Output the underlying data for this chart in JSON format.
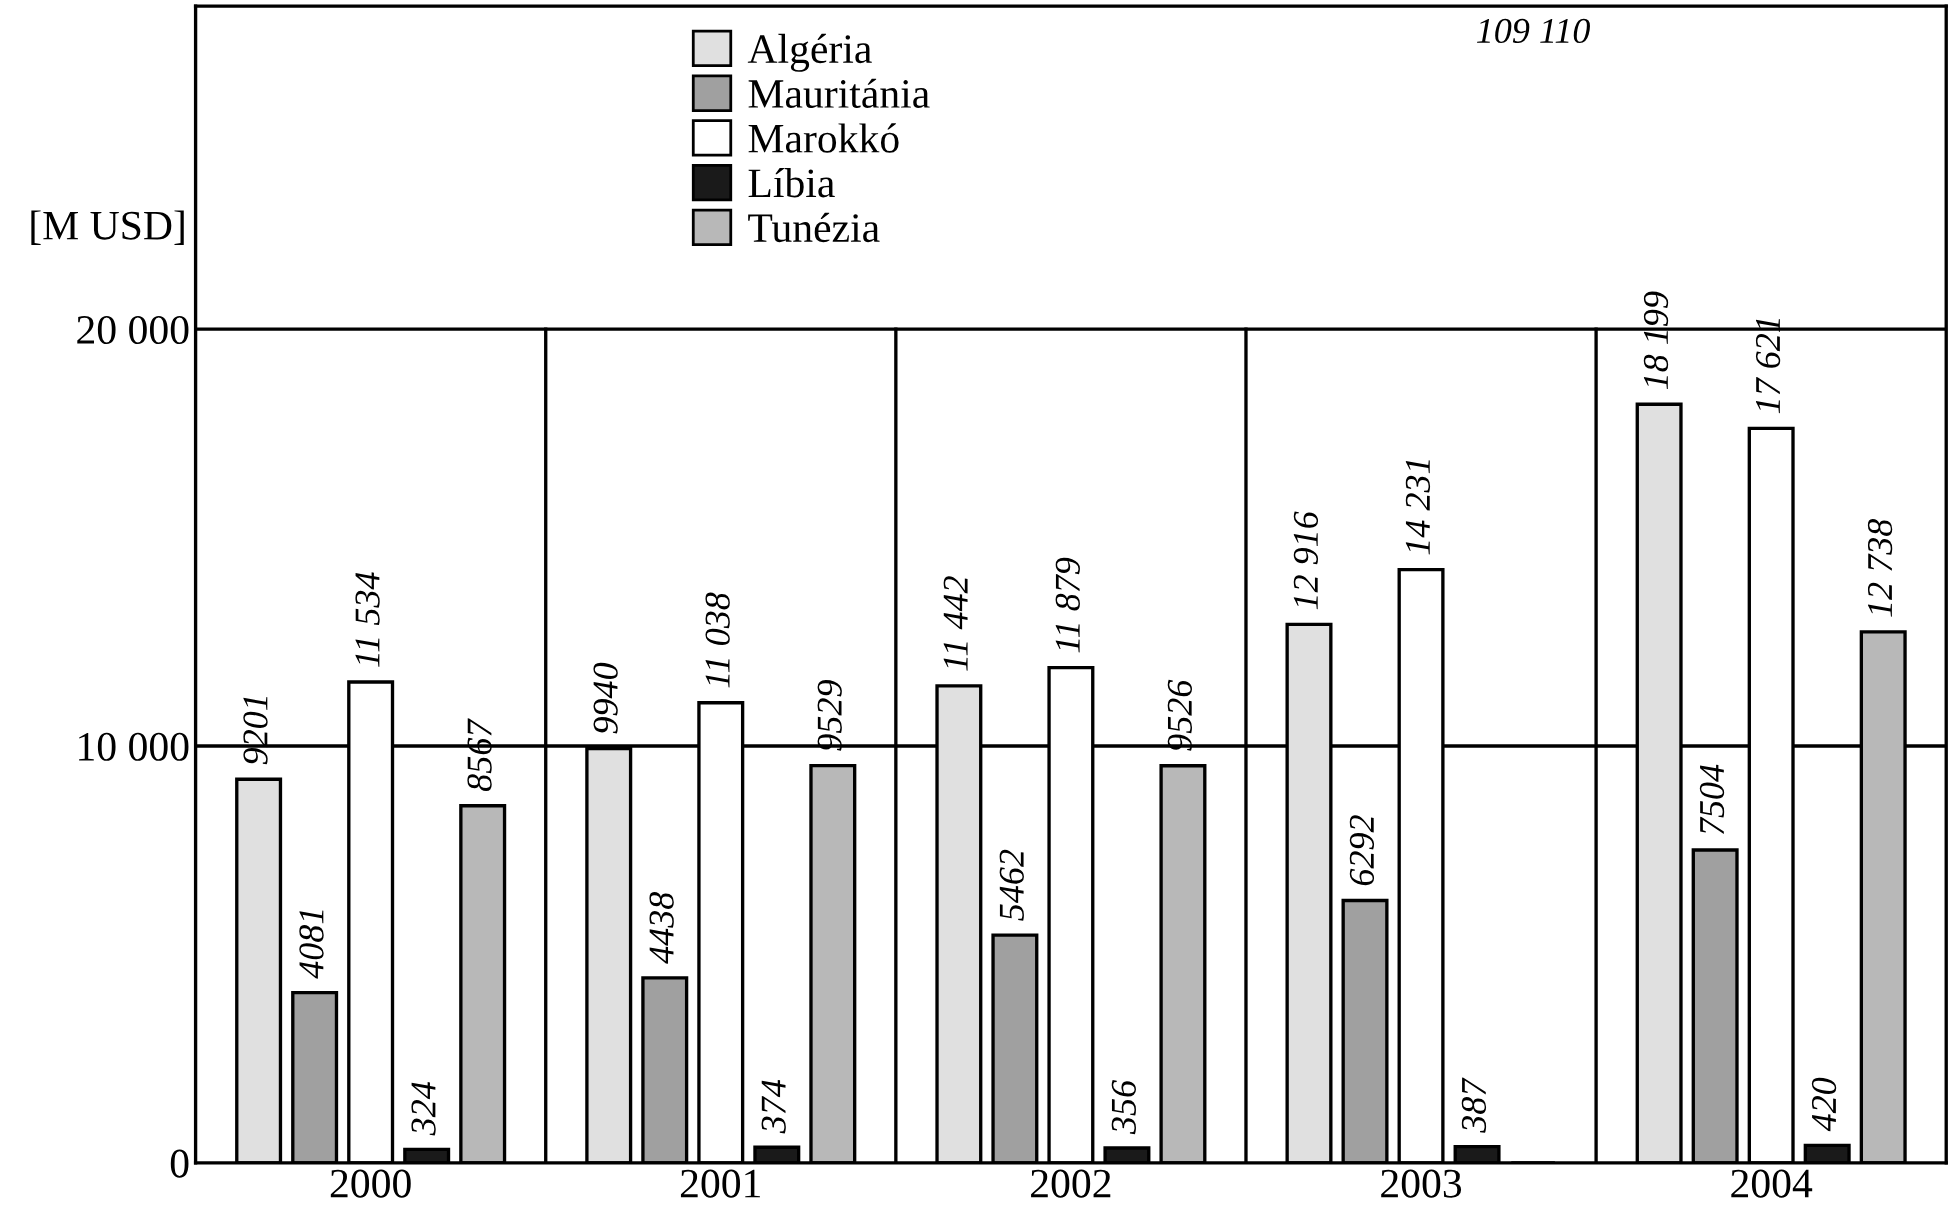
{
  "chart_data": {
    "type": "bar",
    "categories": [
      "2000",
      "2001",
      "2002",
      "2003",
      "2004"
    ],
    "ylabel": "[M USD]",
    "ylim": [
      0,
      27750
    ],
    "yticks": [
      0,
      {
        "value": 10000,
        "label": "10 000"
      },
      {
        "value": 20000,
        "label": "20 000"
      }
    ],
    "grid": true,
    "legend": "top",
    "series": [
      {
        "name": "Algéria",
        "color": "#e0e0e0",
        "values": [
          9201,
          9940,
          11442,
          12916,
          18199
        ],
        "value_labels": [
          "9201",
          "9940",
          "11 442",
          "12 916",
          "18 199"
        ]
      },
      {
        "name": "Mauritánia",
        "color": "#a0a0a0",
        "values": [
          4081,
          4438,
          5462,
          6292,
          7504
        ],
        "value_labels": [
          "4081",
          "4438",
          "5462",
          "6292",
          "7504"
        ]
      },
      {
        "name": "Marokkó",
        "color": "#ffffff",
        "values": [
          11534,
          11038,
          11879,
          14231,
          17621
        ],
        "value_labels": [
          "11 534",
          "11 038",
          "11 879",
          "14 231",
          "17 621"
        ]
      },
      {
        "name": "Líbia",
        "color": "#1a1a1a",
        "values": [
          324,
          374,
          356,
          387,
          420
        ],
        "value_labels": [
          "324",
          "374",
          "356",
          "387",
          "420"
        ]
      },
      {
        "name": "Tunézia",
        "color": "#b8b8b8",
        "values": [
          8567,
          9529,
          9526,
          null,
          12738
        ],
        "value_labels": [
          "8567",
          "9529",
          "9526",
          "109 110",
          "12 738"
        ]
      }
    ]
  }
}
